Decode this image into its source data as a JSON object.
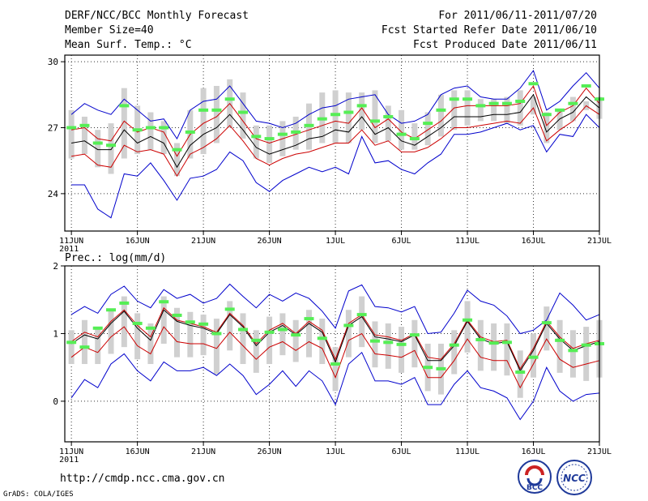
{
  "header": {
    "title": "DERF/NCC/BCC Monthly Forecast",
    "member_size": "Member Size=40",
    "variable": "Mean Surf. Temp.: °C",
    "period": "For 2011/06/11-2011/07/20",
    "started": "Fcst Started Refer Date 2011/06/10",
    "produced": "Fcst Produced Date 2011/06/11"
  },
  "footer": {
    "url": "http://cmdp.ncc.cma.gov.cn",
    "credit": "GrADS: COLA/IGES"
  },
  "logos": {
    "bcc": "BCC",
    "ncc": "NCC"
  },
  "colors": {
    "max_min": "#0000cc",
    "spread": "#cc0000",
    "mean": "#000000",
    "box": "#d0d0d0",
    "green": "#55ee55",
    "grid": "#333333"
  },
  "chart_data": [
    {
      "type": "box",
      "name": "Mean Surf. Temp.",
      "title": "Mean Surf. Temp.: °C",
      "ylim": [
        22.3,
        30.3
      ],
      "yticks": [
        24,
        27,
        30
      ],
      "xlim": [
        0.5,
        41
      ],
      "xticks": [
        {
          "day": 1,
          "label": "11JUN",
          "sub": "2011"
        },
        {
          "day": 6,
          "label": "16JUN"
        },
        {
          "day": 11,
          "label": "21JUN"
        },
        {
          "day": 16,
          "label": "26JUN"
        },
        {
          "day": 21,
          "label": "1JUL"
        },
        {
          "day": 26,
          "label": "6JUL"
        },
        {
          "day": 31,
          "label": "11JUL"
        },
        {
          "day": 36,
          "label": "16JUL"
        },
        {
          "day": 41,
          "label": "21JUL"
        }
      ],
      "series": [
        {
          "name": "max",
          "values": [
            27.6,
            28.1,
            27.8,
            27.6,
            28.3,
            27.8,
            27.3,
            27.4,
            26.5,
            27.8,
            28.2,
            28.3,
            28.9,
            28.1,
            27.3,
            27.2,
            27.0,
            27.2,
            27.6,
            27.9,
            28.0,
            28.3,
            28.4,
            28.5,
            27.6,
            27.2,
            27.3,
            27.6,
            28.5,
            28.8,
            28.9,
            28.4,
            28.3,
            28.3,
            28.8,
            29.6,
            27.8,
            28.2,
            28.9,
            29.5,
            28.8
          ]
        },
        {
          "name": "upper",
          "values": [
            26.9,
            27.0,
            26.5,
            26.4,
            27.3,
            26.8,
            27.0,
            26.8,
            25.7,
            26.7,
            27.2,
            27.5,
            28.1,
            27.3,
            26.5,
            26.3,
            26.5,
            26.7,
            26.9,
            27.1,
            27.3,
            27.2,
            27.9,
            27.0,
            27.4,
            26.8,
            26.5,
            26.9,
            27.3,
            27.9,
            28.0,
            28.0,
            28.0,
            28.0,
            28.1,
            28.9,
            27.1,
            27.7,
            28.0,
            28.8,
            28.1
          ]
        },
        {
          "name": "mean",
          "values": [
            26.3,
            26.4,
            26.0,
            26.0,
            26.9,
            26.3,
            26.6,
            26.3,
            25.2,
            26.2,
            26.7,
            27.0,
            27.6,
            26.9,
            26.1,
            25.8,
            26.0,
            26.2,
            26.5,
            26.6,
            26.9,
            26.8,
            27.5,
            26.7,
            27.0,
            26.4,
            26.2,
            26.6,
            27.0,
            27.5,
            27.5,
            27.5,
            27.6,
            27.6,
            27.7,
            28.5,
            26.8,
            27.4,
            27.7,
            28.4,
            27.9
          ]
        },
        {
          "name": "lower",
          "values": [
            25.7,
            25.8,
            25.3,
            25.2,
            26.2,
            25.9,
            26.0,
            25.8,
            24.8,
            25.8,
            26.1,
            26.5,
            27.1,
            26.4,
            25.6,
            25.3,
            25.6,
            25.8,
            25.9,
            26.1,
            26.3,
            26.3,
            26.9,
            26.2,
            26.4,
            25.9,
            25.9,
            26.1,
            26.5,
            27.0,
            27.0,
            27.1,
            27.2,
            27.3,
            27.2,
            27.9,
            26.4,
            26.9,
            27.3,
            28.0,
            27.6
          ]
        },
        {
          "name": "min",
          "values": [
            24.4,
            24.4,
            23.3,
            22.9,
            24.9,
            24.8,
            25.4,
            24.6,
            23.7,
            24.7,
            24.8,
            25.1,
            25.9,
            25.5,
            24.5,
            24.1,
            24.6,
            24.9,
            25.2,
            25.0,
            25.2,
            24.9,
            26.6,
            25.4,
            25.5,
            25.1,
            24.9,
            25.4,
            25.8,
            26.7,
            26.7,
            26.8,
            27.0,
            27.2,
            26.9,
            27.1,
            25.9,
            26.7,
            26.6,
            27.6,
            27.0
          ]
        },
        {
          "name": "box_top",
          "values": [
            27.8,
            27.5,
            26.9,
            27.2,
            28.8,
            28.0,
            27.7,
            27.3,
            26.3,
            27.8,
            28.8,
            28.9,
            29.2,
            28.6,
            27.1,
            27.1,
            27.3,
            27.5,
            28.1,
            28.6,
            28.7,
            28.6,
            28.6,
            28.7,
            28.0,
            27.8,
            27.2,
            27.7,
            28.5,
            28.7,
            28.7,
            28.3,
            28.3,
            28.4,
            28.7,
            28.4,
            27.7,
            27.8,
            28.4,
            28.2,
            28.4
          ]
        },
        {
          "name": "box_bottom",
          "values": [
            25.6,
            25.8,
            25.2,
            24.9,
            25.6,
            25.8,
            26.0,
            25.8,
            24.8,
            25.6,
            25.8,
            26.3,
            27.0,
            26.5,
            25.6,
            25.4,
            25.7,
            26.0,
            26.0,
            26.3,
            26.3,
            26.3,
            26.9,
            26.3,
            26.4,
            26.0,
            26.0,
            26.2,
            26.6,
            26.9,
            27.1,
            27.3,
            27.3,
            27.2,
            27.1,
            27.6,
            26.3,
            26.9,
            27.3,
            27.8,
            27.4
          ]
        },
        {
          "name": "green",
          "values": [
            27.0,
            27.1,
            26.3,
            26.2,
            28.0,
            26.9,
            27.0,
            27.0,
            26.0,
            26.8,
            27.8,
            27.8,
            28.3,
            27.7,
            26.6,
            26.5,
            26.7,
            26.8,
            27.1,
            27.4,
            27.6,
            27.7,
            28.0,
            27.3,
            27.5,
            26.7,
            26.5,
            27.2,
            27.8,
            28.3,
            28.3,
            28.0,
            28.1,
            28.1,
            28.2,
            29.0,
            27.6,
            27.8,
            28.1,
            28.9,
            28.3
          ]
        }
      ]
    },
    {
      "type": "box",
      "name": "Prec.",
      "title": "Prec.: log(mm/d)",
      "ylim": [
        -0.6,
        2.0
      ],
      "yticks": [
        0,
        1,
        2
      ],
      "xlim": [
        0.5,
        41
      ],
      "xticks": [
        {
          "day": 1,
          "label": "11JUN",
          "sub": "2011"
        },
        {
          "day": 6,
          "label": "16JUN"
        },
        {
          "day": 11,
          "label": "21JUN"
        },
        {
          "day": 16,
          "label": "26JUN"
        },
        {
          "day": 21,
          "label": "1JUL"
        },
        {
          "day": 26,
          "label": "6JUL"
        },
        {
          "day": 31,
          "label": "11JUL"
        },
        {
          "day": 36,
          "label": "16JUL"
        },
        {
          "day": 41,
          "label": "21JUL"
        }
      ],
      "series": [
        {
          "name": "max",
          "values": [
            1.28,
            1.4,
            1.3,
            1.58,
            1.7,
            1.48,
            1.38,
            1.65,
            1.52,
            1.58,
            1.45,
            1.52,
            1.73,
            1.55,
            1.38,
            1.58,
            1.48,
            1.6,
            1.52,
            1.33,
            1.08,
            1.63,
            1.72,
            1.4,
            1.38,
            1.32,
            1.4,
            1.0,
            1.02,
            1.3,
            1.64,
            1.48,
            1.42,
            1.26,
            1.0,
            1.05,
            1.2,
            1.6,
            1.42,
            1.2,
            1.28
          ]
        },
        {
          "name": "upper",
          "values": [
            0.88,
            1.02,
            0.95,
            1.18,
            1.35,
            1.12,
            0.95,
            1.38,
            1.2,
            1.15,
            1.1,
            1.02,
            1.3,
            1.12,
            0.85,
            1.05,
            1.15,
            1.0,
            1.18,
            1.05,
            0.62,
            1.15,
            1.28,
            0.98,
            0.95,
            0.9,
            1.0,
            0.65,
            0.62,
            0.85,
            1.2,
            0.95,
            0.88,
            0.9,
            0.48,
            0.78,
            1.18,
            0.95,
            0.78,
            0.85,
            0.9
          ]
        },
        {
          "name": "mean",
          "values": [
            0.85,
            0.98,
            0.92,
            1.15,
            1.33,
            1.08,
            0.9,
            1.35,
            1.18,
            1.12,
            1.08,
            1.0,
            1.28,
            1.1,
            0.82,
            1.02,
            1.12,
            0.98,
            1.15,
            1.02,
            0.58,
            1.12,
            1.25,
            0.95,
            0.92,
            0.88,
            0.98,
            0.6,
            0.6,
            0.82,
            1.18,
            0.92,
            0.85,
            0.88,
            0.45,
            0.75,
            1.15,
            0.92,
            0.75,
            0.82,
            0.88
          ]
        },
        {
          "name": "lower",
          "values": [
            0.65,
            0.8,
            0.72,
            0.95,
            1.1,
            0.82,
            0.7,
            1.1,
            0.88,
            0.85,
            0.85,
            0.78,
            1.02,
            0.82,
            0.62,
            0.8,
            0.88,
            0.75,
            0.88,
            0.78,
            0.35,
            0.9,
            1.0,
            0.7,
            0.68,
            0.65,
            0.75,
            0.35,
            0.35,
            0.6,
            0.92,
            0.65,
            0.6,
            0.6,
            0.2,
            0.55,
            0.92,
            0.62,
            0.5,
            0.55,
            0.6
          ]
        },
        {
          "name": "min",
          "values": [
            0.05,
            0.32,
            0.2,
            0.55,
            0.7,
            0.45,
            0.3,
            0.58,
            0.45,
            0.45,
            0.5,
            0.38,
            0.55,
            0.38,
            0.1,
            0.25,
            0.45,
            0.22,
            0.45,
            0.3,
            -0.05,
            0.55,
            0.72,
            0.3,
            0.3,
            0.25,
            0.35,
            -0.05,
            -0.05,
            0.25,
            0.45,
            0.2,
            0.15,
            0.05,
            -0.27,
            0.0,
            0.5,
            0.15,
            0.0,
            0.1,
            0.12
          ]
        },
        {
          "name": "box_top",
          "values": [
            1.05,
            1.2,
            1.1,
            1.35,
            1.55,
            1.3,
            1.15,
            1.55,
            1.38,
            1.32,
            1.28,
            1.22,
            1.48,
            1.3,
            1.05,
            1.25,
            1.3,
            1.2,
            1.35,
            1.22,
            0.8,
            1.35,
            1.55,
            1.18,
            1.15,
            1.1,
            1.2,
            0.85,
            0.85,
            1.05,
            1.48,
            1.2,
            1.15,
            1.15,
            0.75,
            1.0,
            1.4,
            1.2,
            1.05,
            1.1,
            1.2
          ]
        },
        {
          "name": "box_bottom",
          "values": [
            0.55,
            0.55,
            0.55,
            0.7,
            0.8,
            0.62,
            0.55,
            0.85,
            0.65,
            0.65,
            0.68,
            0.4,
            0.75,
            0.55,
            0.42,
            0.55,
            0.68,
            0.58,
            0.65,
            0.55,
            0.15,
            0.65,
            0.8,
            0.5,
            0.48,
            0.42,
            0.5,
            0.15,
            0.1,
            0.4,
            0.72,
            0.45,
            0.45,
            0.38,
            0.05,
            0.35,
            0.75,
            0.42,
            0.35,
            0.3,
            0.35
          ]
        },
        {
          "name": "green",
          "values": [
            0.87,
            0.8,
            1.08,
            1.35,
            1.45,
            1.15,
            1.08,
            1.47,
            1.27,
            1.17,
            1.14,
            1.0,
            1.36,
            1.06,
            0.9,
            1.02,
            1.06,
            0.98,
            1.22,
            0.93,
            0.55,
            1.12,
            1.28,
            0.89,
            0.87,
            0.84,
            0.98,
            0.5,
            0.48,
            0.83,
            1.2,
            0.91,
            0.86,
            0.87,
            0.43,
            0.65,
            1.16,
            0.9,
            0.75,
            0.83,
            0.85
          ]
        }
      ]
    }
  ]
}
